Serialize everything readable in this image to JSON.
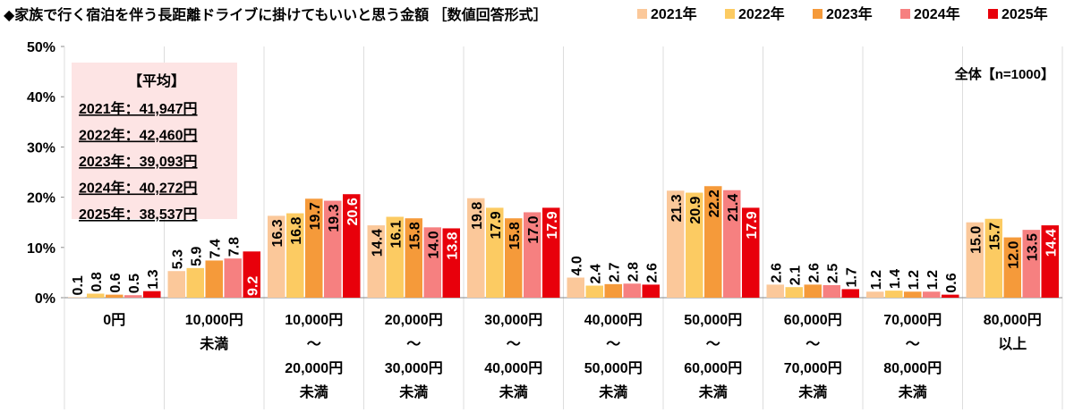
{
  "chart_data": {
    "type": "bar",
    "title": "◆家族で行く宿泊を伴う長距離ドライブに掛けてもいいと思う金額 ［数値回答形式］",
    "subtitle": "全体【n=1000】",
    "categories": [
      [
        "0円"
      ],
      [
        "10,000円",
        "未満"
      ],
      [
        "10,000円",
        "～",
        "20,000円",
        "未満"
      ],
      [
        "20,000円",
        "～",
        "30,000円",
        "未満"
      ],
      [
        "30,000円",
        "～",
        "40,000円",
        "未満"
      ],
      [
        "40,000円",
        "～",
        "50,000円",
        "未満"
      ],
      [
        "50,000円",
        "～",
        "60,000円",
        "未満"
      ],
      [
        "60,000円",
        "～",
        "70,000円",
        "未満"
      ],
      [
        "70,000円",
        "～",
        "80,000円",
        "未満"
      ],
      [
        "80,000円",
        "以上"
      ]
    ],
    "series": [
      {
        "name": "2021年",
        "color": "#fbc89a",
        "values": [
          0.1,
          5.3,
          16.3,
          14.4,
          19.8,
          4.0,
          21.3,
          2.6,
          1.2,
          15.0
        ]
      },
      {
        "name": "2022年",
        "color": "#fccb62",
        "values": [
          0.8,
          5.9,
          16.8,
          16.1,
          17.9,
          2.4,
          20.9,
          2.1,
          1.4,
          15.7
        ]
      },
      {
        "name": "2023年",
        "color": "#f59a3a",
        "values": [
          0.6,
          7.4,
          19.7,
          15.8,
          15.8,
          2.7,
          22.2,
          2.6,
          1.2,
          12.0
        ]
      },
      {
        "name": "2024年",
        "color": "#f68080",
        "values": [
          0.5,
          7.8,
          19.3,
          14.0,
          17.0,
          2.8,
          21.4,
          2.5,
          1.2,
          13.5
        ]
      },
      {
        "name": "2025年",
        "color": "#e8000b",
        "values": [
          1.3,
          9.2,
          20.6,
          13.8,
          17.9,
          2.6,
          17.9,
          1.7,
          0.6,
          14.4
        ]
      }
    ],
    "ylim": [
      0,
      50
    ],
    "yticks": [
      "0%",
      "10%",
      "20%",
      "30%",
      "40%",
      "50%"
    ],
    "legend_position": "top-right",
    "grid": true,
    "annotation": {
      "heading": "【平均】",
      "lines": [
        "2021年：41,947円",
        "2022年：42,460円",
        "2023年：39,093円",
        "2024年：40,272円",
        "2025年：38,537円"
      ]
    }
  }
}
